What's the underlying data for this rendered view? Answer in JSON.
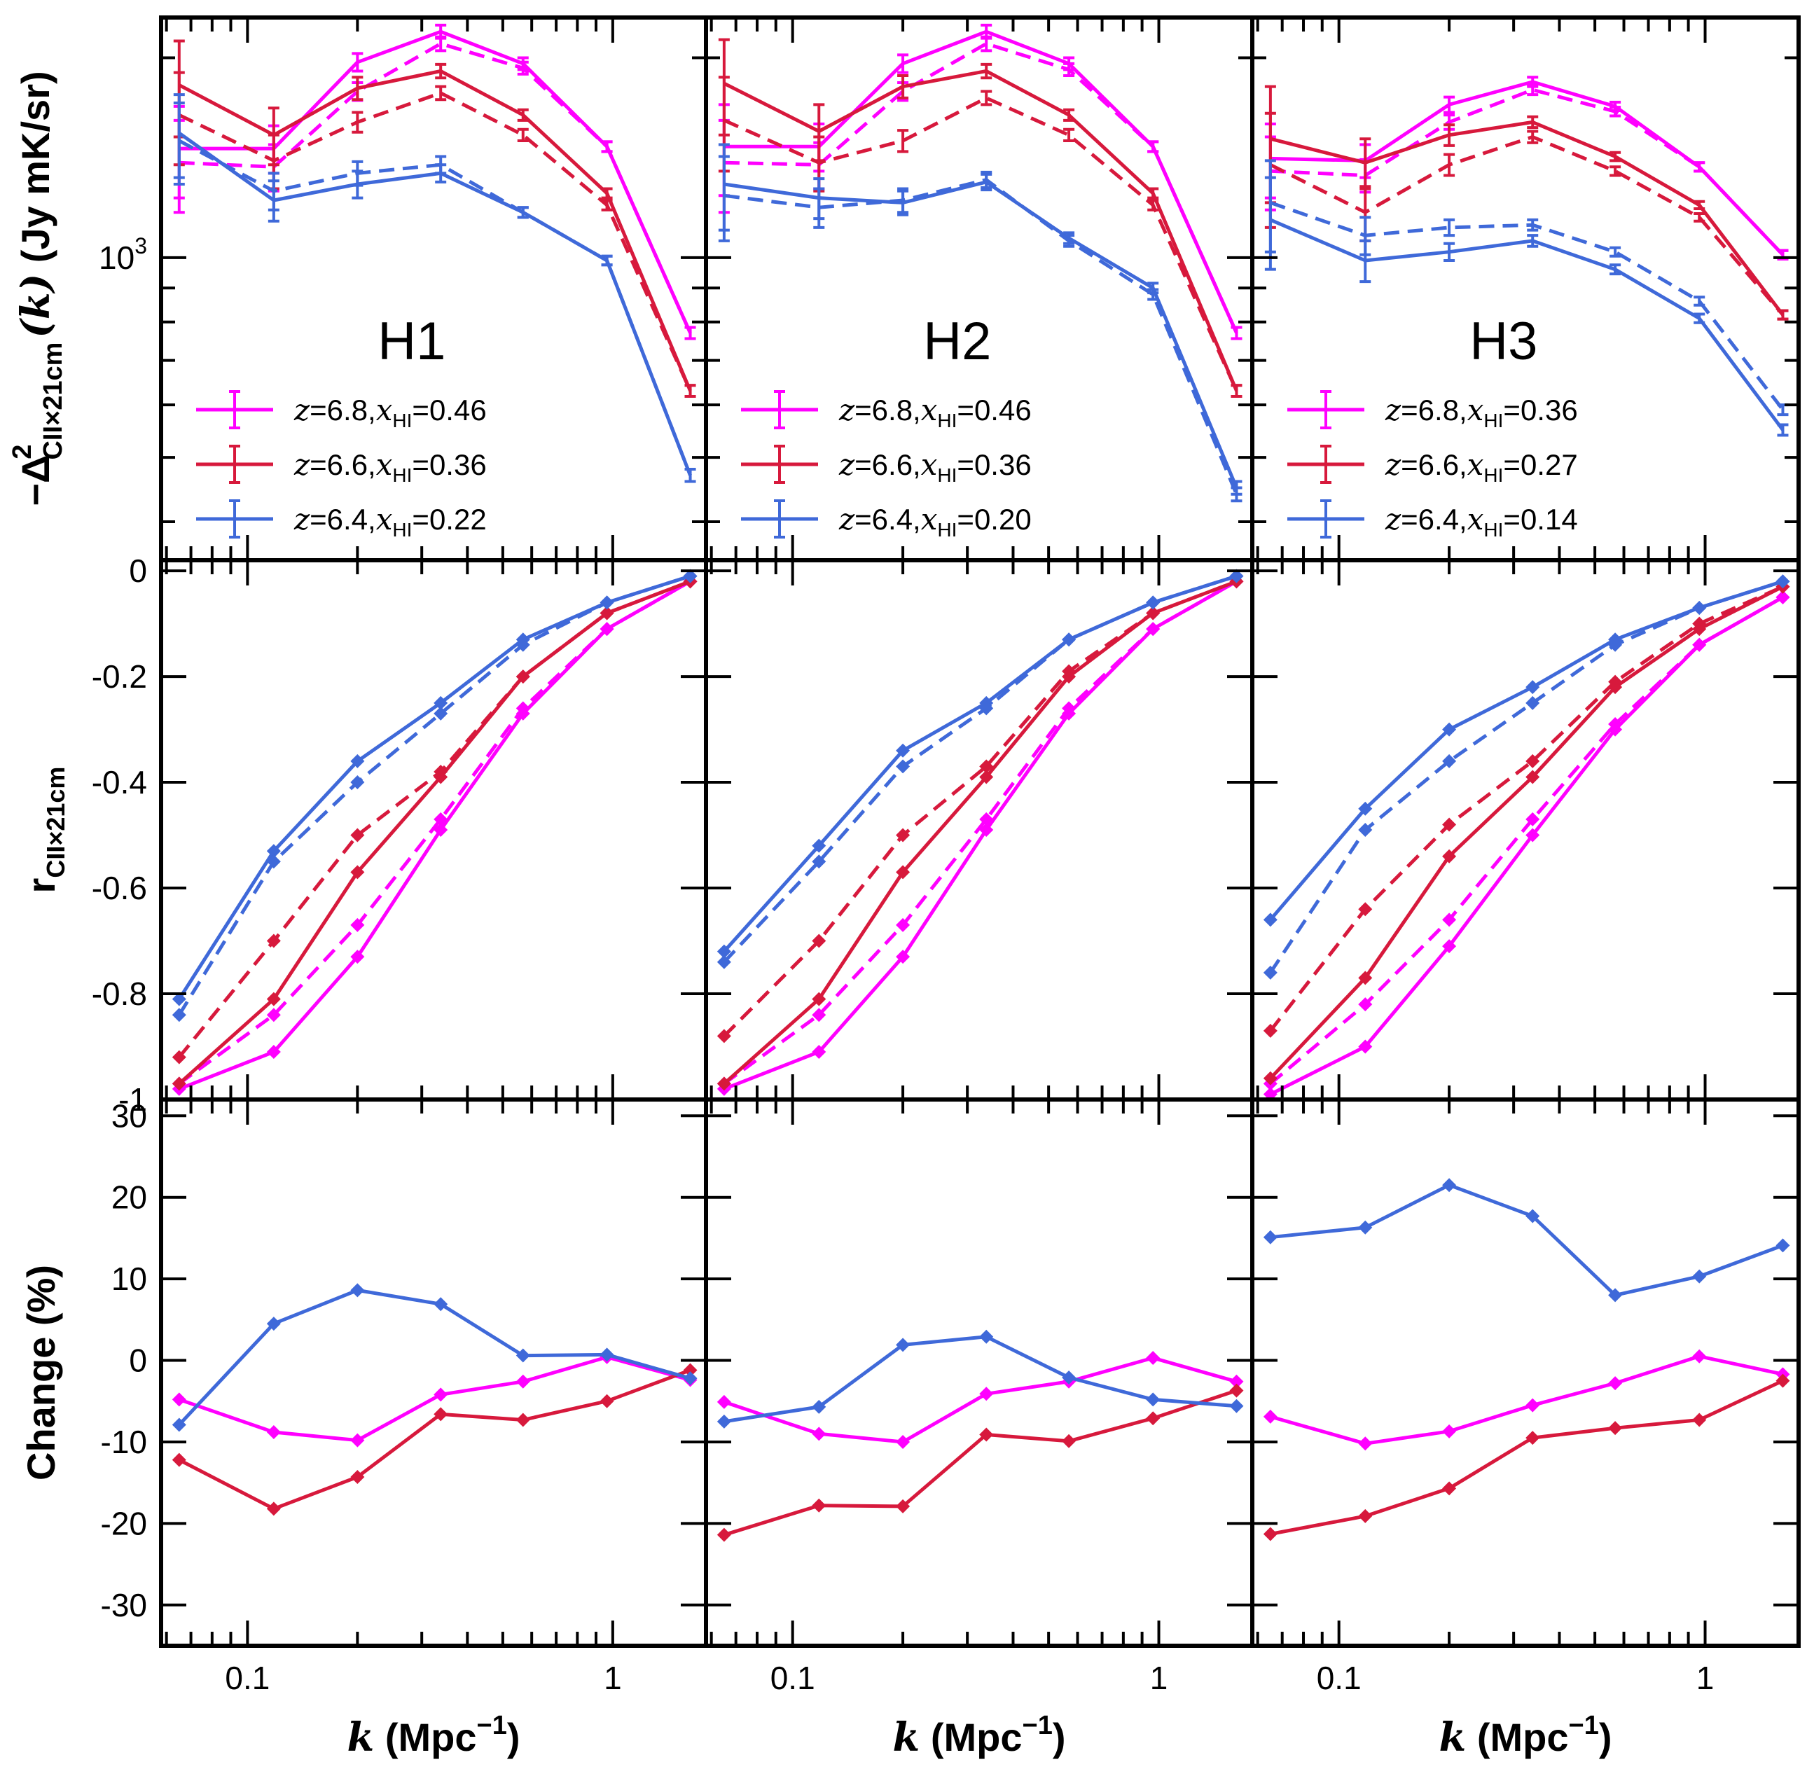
{
  "chart_data": {
    "type": "line",
    "layout": "3x3 grid, shared x axis per column, shared y axis per row",
    "x": [
      0.065,
      0.118,
      0.2,
      0.338,
      0.568,
      0.964,
      1.63
    ],
    "xscale": "log",
    "xlim": [
      0.058,
      1.8
    ],
    "xticks": [
      0.1,
      1
    ],
    "xtick_labels": [
      "0.1",
      "1"
    ],
    "xlabel": {
      "symbol": "k",
      "text": " (Mpc",
      "exp": "−1",
      "close": ")"
    },
    "colors": {
      "z68": "#ff00ff",
      "z66": "#d7193c",
      "z64": "#3f69d9"
    },
    "linestyles": {
      "solid": "solid",
      "dashed": "dashed"
    },
    "rows": [
      {
        "id": "power",
        "ylabel": {
          "prefix": "−Δ",
          "sup": "2",
          "sub": "CII×21cm",
          "mid": "(k)",
          "units": " (Jy mK/sr)"
        },
        "yscale": "log",
        "ylim": [
          350,
          2300
        ],
        "yticks": [
          1000
        ],
        "ytick_labels": [
          "10",
          "3"
        ]
      },
      {
        "id": "correlation",
        "ylabel": {
          "main": "r",
          "sub": "CII×21cm"
        },
        "yscale": "linear",
        "ylim": [
          -1.0,
          0.02
        ],
        "yticks": [
          0,
          -0.2,
          -0.4,
          -0.6,
          -0.8,
          -1
        ],
        "ytick_labels": [
          "0",
          "-0.2",
          "-0.4",
          "-0.6",
          "-0.8",
          "-1"
        ]
      },
      {
        "id": "change",
        "ylabel": {
          "main": "Change (%)"
        },
        "yscale": "linear",
        "ylim": [
          -35,
          32
        ],
        "yticks": [
          30,
          20,
          10,
          0,
          -10,
          -20,
          -30
        ],
        "ytick_labels": [
          "30",
          "20",
          "10",
          "0",
          "-10",
          "-20",
          "-30"
        ]
      }
    ],
    "panels": [
      {
        "title": "H1",
        "legend": [
          {
            "key": "z68",
            "z": "6.8",
            "xhi": "0.46"
          },
          {
            "key": "z66",
            "z": "6.6",
            "xhi": "0.36"
          },
          {
            "key": "z64",
            "z": "6.4",
            "xhi": "0.22"
          }
        ],
        "power": [
          {
            "key": "z68",
            "style": "solid",
            "values": [
              1460,
              1460,
              1970,
              2190,
              1960,
              1470,
              770
            ],
            "errors": [
              230,
              120,
              60,
              50,
              40,
              25,
              15
            ]
          },
          {
            "key": "z68",
            "style": "dashed",
            "values": [
              1390,
              1370,
              1780,
              2100,
              1930,
              1470,
              770
            ],
            "errors": [
              220,
              110,
              55,
              50,
              40,
              25,
              15
            ]
          },
          {
            "key": "z66",
            "style": "solid",
            "values": [
              1820,
              1530,
              1800,
              1910,
              1640,
              1250,
              630
            ],
            "errors": [
              300,
              150,
              70,
              45,
              30,
              20,
              12
            ]
          },
          {
            "key": "z66",
            "style": "dashed",
            "values": [
              1640,
              1400,
              1600,
              1770,
              1530,
              1200,
              630
            ],
            "errors": [
              260,
              130,
              55,
              40,
              30,
              20,
              12
            ]
          },
          {
            "key": "z64",
            "style": "solid",
            "values": [
              1540,
              1220,
              1290,
              1340,
              1170,
              990,
              470
            ],
            "errors": [
              220,
              85,
              60,
              40,
              20,
              15,
              10
            ]
          },
          {
            "key": "z64",
            "style": "dashed",
            "values": [
              1500,
              1260,
              1340,
              1380,
              1170,
              990,
              470
            ],
            "errors": [
              210,
              80,
              55,
              40,
              20,
              15,
              10
            ]
          }
        ],
        "correlation": [
          {
            "key": "z68",
            "style": "solid",
            "values": [
              -0.98,
              -0.91,
              -0.73,
              -0.49,
              -0.27,
              -0.11,
              -0.02
            ]
          },
          {
            "key": "z68",
            "style": "dashed",
            "values": [
              -0.97,
              -0.84,
              -0.67,
              -0.47,
              -0.26,
              -0.11,
              -0.02
            ]
          },
          {
            "key": "z66",
            "style": "solid",
            "values": [
              -0.97,
              -0.81,
              -0.57,
              -0.39,
              -0.2,
              -0.08,
              -0.02
            ]
          },
          {
            "key": "z66",
            "style": "dashed",
            "values": [
              -0.92,
              -0.7,
              -0.5,
              -0.38,
              -0.2,
              -0.08,
              -0.02
            ]
          },
          {
            "key": "z64",
            "style": "solid",
            "values": [
              -0.81,
              -0.53,
              -0.36,
              -0.25,
              -0.13,
              -0.06,
              -0.01
            ]
          },
          {
            "key": "z64",
            "style": "dashed",
            "values": [
              -0.84,
              -0.55,
              -0.4,
              -0.27,
              -0.14,
              -0.06,
              -0.01
            ]
          }
        ],
        "change": [
          {
            "key": "z68",
            "values": [
              -4.8,
              -8.8,
              -9.8,
              -4.2,
              -2.6,
              0.4,
              -2.4
            ]
          },
          {
            "key": "z66",
            "values": [
              -12.2,
              -18.2,
              -14.3,
              -6.6,
              -7.3,
              -5.0,
              -1.2
            ]
          },
          {
            "key": "z64",
            "values": [
              -7.9,
              4.5,
              8.6,
              6.9,
              0.6,
              0.7,
              -2.2
            ]
          }
        ]
      },
      {
        "title": "H2",
        "legend": [
          {
            "key": "z68",
            "z": "6.8",
            "xhi": "0.46"
          },
          {
            "key": "z66",
            "z": "6.6",
            "xhi": "0.36"
          },
          {
            "key": "z64",
            "z": "6.4",
            "xhi": "0.20"
          }
        ],
        "power": [
          {
            "key": "z68",
            "style": "solid",
            "values": [
              1470,
              1470,
              1960,
              2190,
              1960,
              1470,
              770
            ],
            "errors": [
              230,
              120,
              60,
              50,
              40,
              25,
              15
            ]
          },
          {
            "key": "z68",
            "style": "dashed",
            "values": [
              1390,
              1380,
              1780,
              2100,
              1920,
              1470,
              770
            ],
            "errors": [
              220,
              110,
              55,
              50,
              40,
              25,
              15
            ]
          },
          {
            "key": "z66",
            "style": "solid",
            "values": [
              1830,
              1550,
              1810,
              1910,
              1640,
              1250,
              630
            ],
            "errors": [
              300,
              150,
              70,
              45,
              30,
              20,
              12
            ]
          },
          {
            "key": "z66",
            "style": "dashed",
            "values": [
              1610,
              1390,
              1500,
              1740,
              1530,
              1200,
              630
            ],
            "errors": [
              260,
              130,
              55,
              40,
              30,
              20,
              12
            ]
          },
          {
            "key": "z64",
            "style": "solid",
            "values": [
              1290,
              1230,
              1210,
              1300,
              1070,
              900,
              450
            ],
            "errors": [
              190,
              85,
              50,
              35,
              20,
              15,
              10
            ]
          },
          {
            "key": "z64",
            "style": "dashed",
            "values": [
              1240,
              1190,
              1220,
              1310,
              1060,
              880,
              440
            ],
            "errors": [
              180,
              80,
              50,
              35,
              20,
              15,
              10
            ]
          }
        ],
        "correlation": [
          {
            "key": "z68",
            "style": "solid",
            "values": [
              -0.98,
              -0.91,
              -0.73,
              -0.49,
              -0.27,
              -0.11,
              -0.02
            ]
          },
          {
            "key": "z68",
            "style": "dashed",
            "values": [
              -0.97,
              -0.84,
              -0.67,
              -0.47,
              -0.26,
              -0.11,
              -0.02
            ]
          },
          {
            "key": "z66",
            "style": "solid",
            "values": [
              -0.97,
              -0.81,
              -0.57,
              -0.39,
              -0.2,
              -0.08,
              -0.02
            ]
          },
          {
            "key": "z66",
            "style": "dashed",
            "values": [
              -0.88,
              -0.7,
              -0.5,
              -0.37,
              -0.19,
              -0.08,
              -0.02
            ]
          },
          {
            "key": "z64",
            "style": "solid",
            "values": [
              -0.72,
              -0.52,
              -0.34,
              -0.25,
              -0.13,
              -0.06,
              -0.01
            ]
          },
          {
            "key": "z64",
            "style": "dashed",
            "values": [
              -0.74,
              -0.55,
              -0.37,
              -0.26,
              -0.13,
              -0.06,
              -0.01
            ]
          }
        ],
        "change": [
          {
            "key": "z68",
            "values": [
              -5.1,
              -9.0,
              -10.0,
              -4.1,
              -2.6,
              0.3,
              -2.6
            ]
          },
          {
            "key": "z66",
            "values": [
              -21.4,
              -17.8,
              -17.9,
              -9.1,
              -9.9,
              -7.1,
              -3.7
            ]
          },
          {
            "key": "z64",
            "values": [
              -7.5,
              -5.7,
              1.9,
              2.9,
              -2.1,
              -4.8,
              -5.6
            ]
          }
        ]
      },
      {
        "title": "H3",
        "legend": [
          {
            "key": "z68",
            "z": "6.8",
            "xhi": "0.36"
          },
          {
            "key": "z66",
            "z": "6.6",
            "xhi": "0.27"
          },
          {
            "key": "z64",
            "z": "6.4",
            "xhi": "0.14"
          }
        ],
        "power": [
          {
            "key": "z68",
            "style": "solid",
            "values": [
              1410,
              1400,
              1700,
              1840,
              1690,
              1370,
              1010
            ],
            "errors": [
              180,
              80,
              45,
              30,
              25,
              20,
              15
            ]
          },
          {
            "key": "z68",
            "style": "dashed",
            "values": [
              1350,
              1330,
              1600,
              1790,
              1660,
              1370,
              1010
            ],
            "errors": [
              170,
              75,
              40,
              30,
              25,
              20,
              15
            ]
          },
          {
            "key": "z66",
            "style": "solid",
            "values": [
              1510,
              1390,
              1530,
              1600,
              1420,
              1200,
              820
            ],
            "errors": [
              300,
              120,
              55,
              30,
              20,
              15,
              12
            ]
          },
          {
            "key": "z66",
            "style": "dashed",
            "values": [
              1380,
              1170,
              1380,
              1520,
              1350,
              1150,
              820
            ],
            "errors": [
              270,
              110,
              50,
              30,
              20,
              15,
              12
            ]
          },
          {
            "key": "z64",
            "style": "solid",
            "values": [
              1140,
              990,
              1020,
              1060,
              960,
              810,
              550
            ],
            "errors": [
              180,
              70,
              30,
              20,
              15,
              12,
              10
            ]
          },
          {
            "key": "z64",
            "style": "dashed",
            "values": [
              1210,
              1080,
              1110,
              1120,
              1020,
              860,
              590
            ],
            "errors": [
              190,
              70,
              30,
              20,
              15,
              12,
              10
            ]
          }
        ],
        "correlation": [
          {
            "key": "z68",
            "style": "solid",
            "values": [
              -0.99,
              -0.9,
              -0.71,
              -0.5,
              -0.3,
              -0.14,
              -0.05
            ]
          },
          {
            "key": "z68",
            "style": "dashed",
            "values": [
              -0.97,
              -0.82,
              -0.66,
              -0.47,
              -0.29,
              -0.14,
              -0.05
            ]
          },
          {
            "key": "z66",
            "style": "solid",
            "values": [
              -0.96,
              -0.77,
              -0.54,
              -0.39,
              -0.22,
              -0.11,
              -0.03
            ]
          },
          {
            "key": "z66",
            "style": "dashed",
            "values": [
              -0.87,
              -0.64,
              -0.48,
              -0.36,
              -0.21,
              -0.1,
              -0.03
            ]
          },
          {
            "key": "z64",
            "style": "solid",
            "values": [
              -0.66,
              -0.45,
              -0.3,
              -0.22,
              -0.13,
              -0.07,
              -0.02
            ]
          },
          {
            "key": "z64",
            "style": "dashed",
            "values": [
              -0.76,
              -0.49,
              -0.36,
              -0.25,
              -0.14,
              -0.07,
              -0.02
            ]
          }
        ],
        "change": [
          {
            "key": "z68",
            "values": [
              -6.9,
              -10.2,
              -8.7,
              -5.5,
              -2.8,
              0.5,
              -1.7
            ]
          },
          {
            "key": "z66",
            "values": [
              -21.3,
              -19.1,
              -15.7,
              -9.5,
              -8.3,
              -7.3,
              -2.5
            ]
          },
          {
            "key": "z64",
            "values": [
              15.1,
              16.3,
              21.5,
              17.7,
              8.0,
              10.3,
              14.1
            ]
          }
        ]
      }
    ]
  }
}
